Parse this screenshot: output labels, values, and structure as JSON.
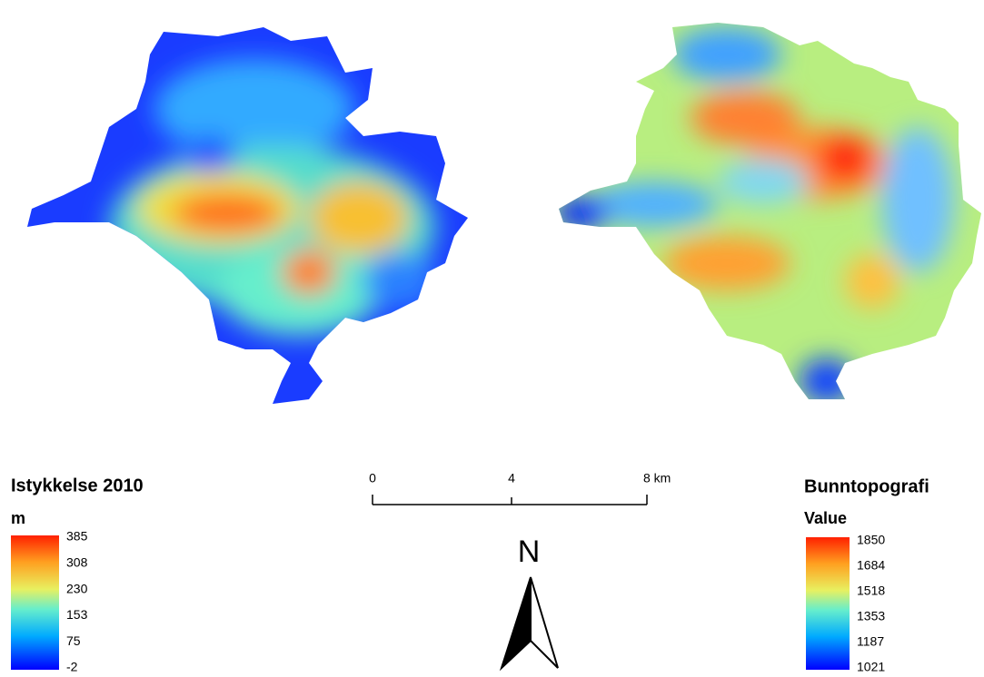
{
  "legends": [
    {
      "title": "Istykkelse 2010",
      "unit": "m",
      "labels": [
        385,
        308,
        230,
        153,
        75,
        -2
      ]
    },
    {
      "title": "Bunntopografi",
      "unit": "Value",
      "labels": [
        1850,
        1684,
        1518,
        1353,
        1187,
        1021
      ]
    }
  ],
  "scale_bar": {
    "labels": [
      "0",
      "4",
      "8 km"
    ]
  },
  "north_arrow": "N"
}
